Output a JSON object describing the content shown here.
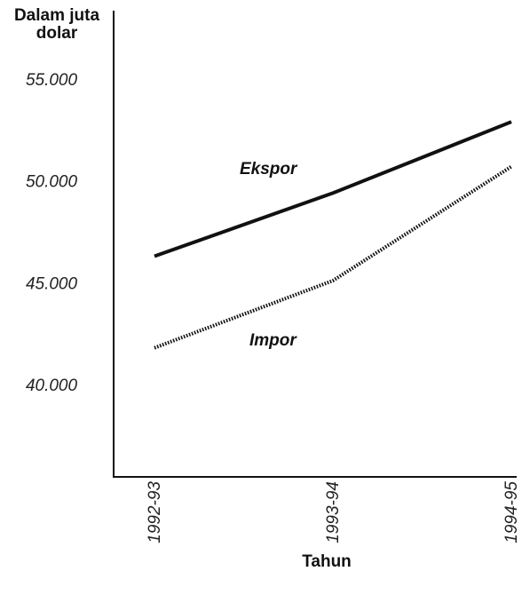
{
  "chart_data": {
    "type": "line",
    "ylabel_lines": [
      "Dalam juta",
      "dolar"
    ],
    "xlabel": "Tahun",
    "categories": [
      "1992-93",
      "1993-94",
      "1994-95"
    ],
    "ylim": [
      35000,
      57500
    ],
    "yticks": [
      55000,
      50000,
      45000,
      40000
    ],
    "ytick_labels": [
      "55.000",
      "50.000",
      "45.000",
      "40.000"
    ],
    "grid": false,
    "legend": "inline labels",
    "series": [
      {
        "name": "Ekspor",
        "values": [
          46300,
          49400,
          52900
        ],
        "style": "solid",
        "color": "#111111"
      },
      {
        "name": "Impor",
        "values": [
          41800,
          45100,
          50700
        ],
        "style": "dotted",
        "color": "#111111"
      }
    ]
  }
}
